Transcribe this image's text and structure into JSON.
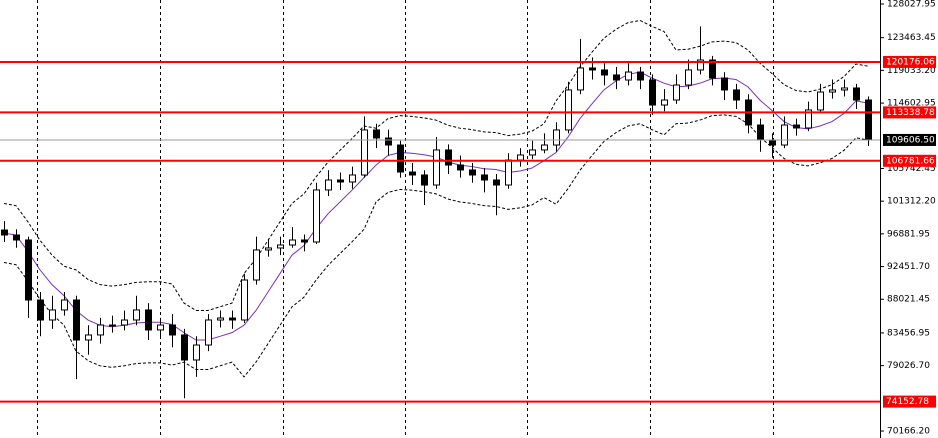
{
  "chart_data": {
    "type": "candlestick",
    "ylim": [
      69220,
      128570
    ],
    "yticks": [
      128027.95,
      123463.45,
      {
        "value": 119033.2,
        "label": "119033.20"
      },
      114602.95,
      105742.45,
      {
        "value": 101312.2,
        "label": "101312.20"
      },
      96881.95,
      {
        "value": 92451.7,
        "label": "92451.70"
      },
      88021.45,
      83456.95,
      {
        "value": 79026.7,
        "label": "79026.70"
      },
      {
        "value": 70166.2,
        "label": "70166.20"
      }
    ],
    "levels": [
      120176.06,
      113338.78,
      106781.66,
      74152.78
    ],
    "level_color": "#ff0000",
    "current_price": {
      "value": 109606.5,
      "label": "109606.50"
    },
    "up_color": "#ffffff",
    "down_color": "#000000",
    "open": [
      97400,
      96730,
      96050,
      87920,
      85210,
      86570,
      87920,
      82500,
      83180,
      84530,
      84530,
      85210,
      86570,
      83860,
      84530,
      83180,
      79790,
      81820,
      85210,
      85480,
      85210,
      90630,
      94700,
      94970,
      95370,
      96050,
      95780,
      102830,
      104180,
      103910,
      104860,
      110960,
      109870,
      108920,
      105260,
      104860,
      103500,
      108250,
      106210,
      105540,
      104860,
      104180,
      103500,
      106890,
      107570,
      108250,
      108920,
      110960,
      116380,
      119360,
      119090,
      118410,
      117730,
      118810,
      117730,
      114340,
      115020,
      117050,
      119090,
      120440,
      118000,
      116380,
      115020,
      111630,
      109600,
      108920,
      111630,
      111230,
      113670,
      116100,
      116380,
      116650,
      115020
    ],
    "high": [
      98600,
      97500,
      96500,
      89000,
      88500,
      89000,
      88500,
      84500,
      85500,
      85800,
      86500,
      88500,
      87500,
      85500,
      86000,
      84000,
      83000,
      86000,
      86500,
      86500,
      91500,
      96500,
      96200,
      96500,
      97800,
      96800,
      103800,
      105500,
      105200,
      106000,
      112800,
      111800,
      111000,
      109500,
      106500,
      105500,
      110000,
      109000,
      107500,
      106500,
      105800,
      105000,
      107800,
      108500,
      109500,
      110500,
      112000,
      117500,
      123300,
      120800,
      120000,
      119500,
      120000,
      119500,
      118500,
      116500,
      118500,
      120500,
      125000,
      121000,
      118800,
      117200,
      115800,
      112500,
      110500,
      112800,
      112500,
      114800,
      117200,
      117800,
      117800,
      117200,
      115500
    ],
    "low": [
      95800,
      95000,
      85500,
      83000,
      84000,
      85800,
      77200,
      80500,
      82000,
      83500,
      83800,
      84500,
      82500,
      82800,
      81500,
      74600,
      77500,
      81000,
      84200,
      84000,
      84800,
      90000,
      93800,
      94000,
      95000,
      94500,
      95500,
      102000,
      102800,
      103000,
      104500,
      108500,
      107500,
      104500,
      103500,
      100800,
      103000,
      105000,
      104500,
      103800,
      102500,
      99400,
      103000,
      106000,
      107000,
      107800,
      108000,
      110500,
      115800,
      117800,
      117000,
      116500,
      117000,
      116500,
      113000,
      113500,
      114500,
      116500,
      118500,
      117000,
      115000,
      113800,
      110500,
      108000,
      107200,
      108500,
      110200,
      110800,
      113200,
      115200,
      115500,
      113800,
      108800
    ],
    "close": [
      96730,
      96050,
      87920,
      85210,
      86570,
      87920,
      82500,
      83180,
      84530,
      84530,
      85210,
      86570,
      83860,
      84530,
      83180,
      79790,
      81820,
      85210,
      85480,
      85210,
      90630,
      94700,
      94970,
      95370,
      96050,
      95780,
      102830,
      104180,
      103910,
      104860,
      110960,
      109870,
      108920,
      105260,
      104860,
      103500,
      108250,
      106210,
      105540,
      104860,
      104180,
      103500,
      106890,
      107570,
      108250,
      108920,
      110960,
      116380,
      119360,
      119090,
      118410,
      117730,
      118810,
      117730,
      114340,
      115020,
      117050,
      119090,
      120440,
      118000,
      116380,
      115020,
      111630,
      109600,
      108920,
      111630,
      111230,
      113670,
      116100,
      116380,
      116650,
      115020,
      109600
    ],
    "lines": [
      {
        "color": "#7b2fbe",
        "dash": false,
        "values": [
          97000,
          96700,
          94500,
          92000,
          90000,
          88500,
          86500,
          85200,
          84500,
          84300,
          84500,
          84800,
          84900,
          84900,
          84600,
          83500,
          82500,
          82500,
          83000,
          83500,
          84500,
          86500,
          89000,
          91500,
          94000,
          95300,
          97600,
          99600,
          101200,
          102800,
          104500,
          106200,
          107500,
          107900,
          107800,
          107600,
          107300,
          106600,
          106200,
          106000,
          105700,
          105600,
          105200,
          105400,
          105800,
          106800,
          107900,
          110000,
          112500,
          114500,
          116400,
          117600,
          118500,
          118800,
          118000,
          117300,
          116800,
          116900,
          117300,
          117900,
          118000,
          117800,
          116800,
          115000,
          113600,
          112100,
          111300,
          111100,
          111500,
          112100,
          113200,
          114900,
          114600
        ]
      },
      {
        "color": "#000000",
        "dash": true,
        "values": [
          101000,
          100700,
          98500,
          96000,
          94000,
          92500,
          92000,
          90700,
          90000,
          89800,
          90000,
          90300,
          90400,
          90400,
          90100,
          87500,
          86500,
          86500,
          87000,
          87500,
          91500,
          93500,
          96000,
          98500,
          101000,
          102300,
          104600,
          106600,
          108200,
          109800,
          111500,
          111200,
          112500,
          112900,
          112800,
          112600,
          112300,
          111600,
          111200,
          111000,
          110700,
          110600,
          110200,
          110400,
          110800,
          111800,
          114900,
          117000,
          119500,
          121500,
          123400,
          124600,
          125500,
          125800,
          125000,
          124300,
          121800,
          121900,
          122300,
          122900,
          123000,
          122800,
          121800,
          120000,
          118600,
          117100,
          116300,
          116100,
          116500,
          117100,
          118200,
          119900,
          119600
        ]
      },
      {
        "color": "#000000",
        "dash": true,
        "values": [
          93000,
          92700,
          90500,
          88000,
          86000,
          84500,
          81000,
          79700,
          79000,
          78800,
          79000,
          79300,
          79400,
          79400,
          79100,
          79500,
          78500,
          78500,
          79000,
          79500,
          77500,
          79500,
          82000,
          84500,
          87000,
          88300,
          90600,
          92600,
          94200,
          95800,
          97500,
          101200,
          102500,
          102900,
          102800,
          102600,
          102300,
          101600,
          101200,
          101000,
          100700,
          100600,
          100200,
          100400,
          100800,
          101800,
          100900,
          103000,
          105500,
          107500,
          109400,
          110600,
          111500,
          111800,
          111000,
          110300,
          111800,
          111900,
          112300,
          112900,
          113000,
          112800,
          111800,
          110000,
          108600,
          107100,
          106300,
          106100,
          106500,
          107100,
          108200,
          109900,
          109600
        ]
      }
    ]
  }
}
